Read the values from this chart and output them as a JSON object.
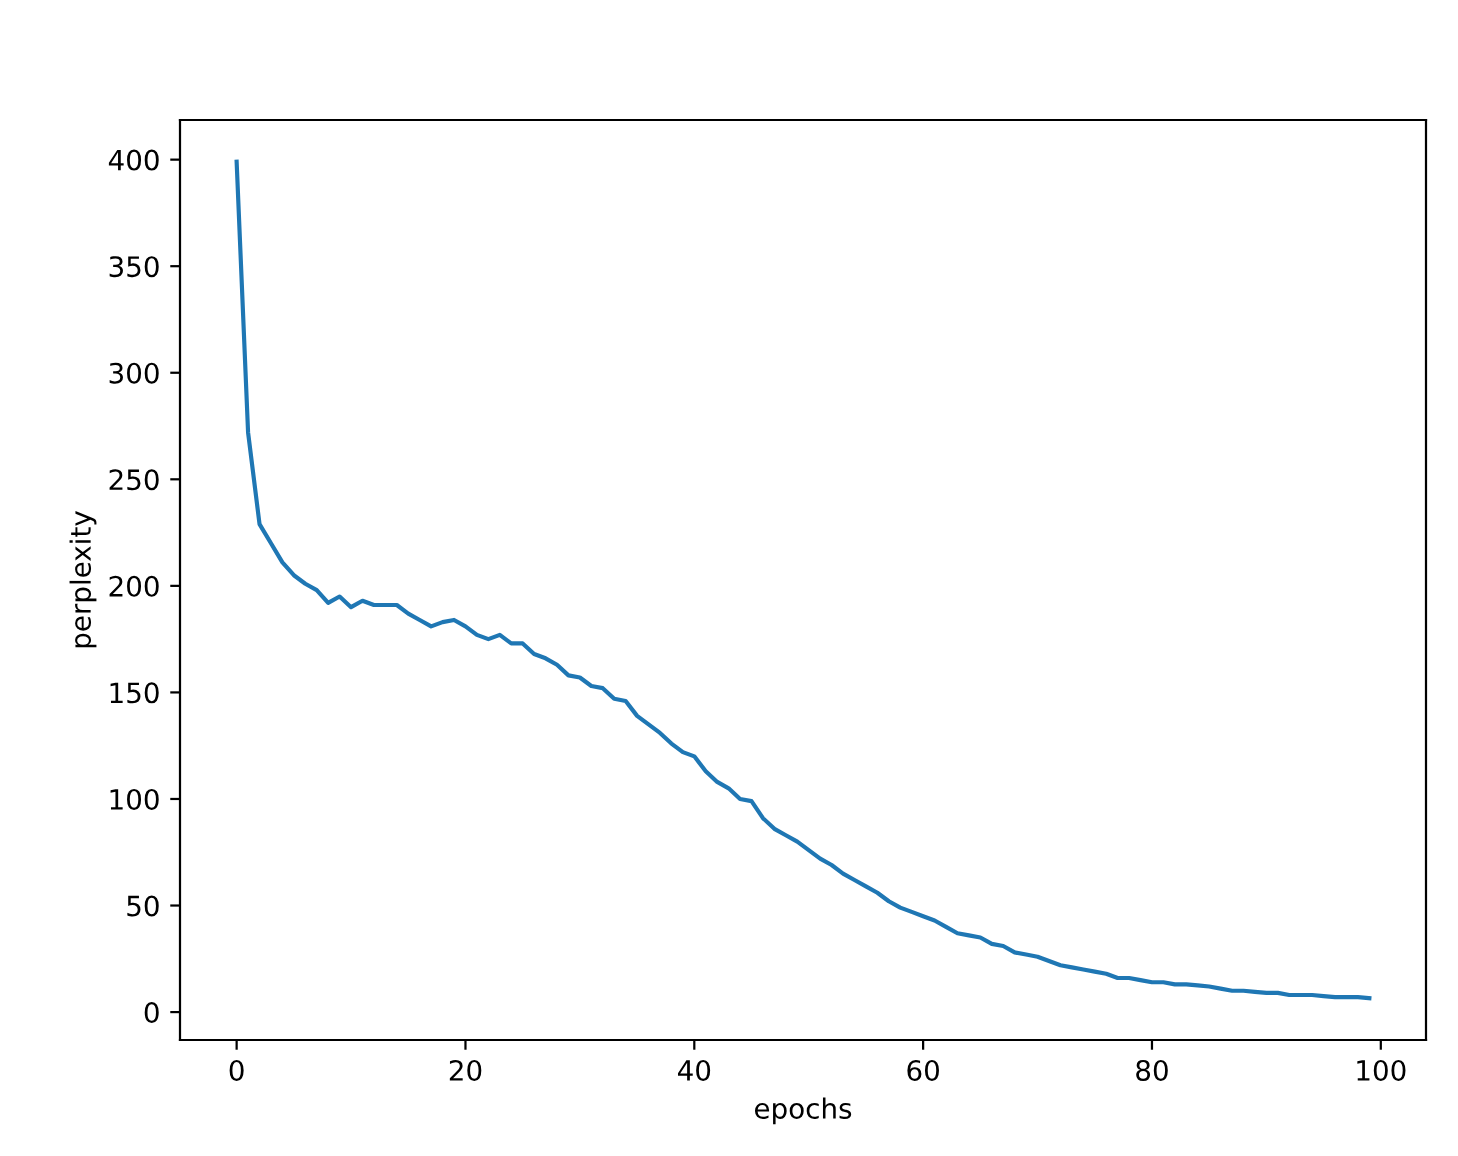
{
  "chart_data": {
    "type": "line",
    "xlabel": "epochs",
    "ylabel": "perplexity",
    "x": [
      0,
      1,
      2,
      3,
      4,
      5,
      6,
      7,
      8,
      9,
      10,
      11,
      12,
      13,
      14,
      15,
      16,
      17,
      18,
      19,
      20,
      21,
      22,
      23,
      24,
      25,
      26,
      27,
      28,
      29,
      30,
      31,
      32,
      33,
      34,
      35,
      36,
      37,
      38,
      39,
      40,
      41,
      42,
      43,
      44,
      45,
      46,
      47,
      48,
      49,
      50,
      51,
      52,
      53,
      54,
      55,
      56,
      57,
      58,
      59,
      60,
      61,
      62,
      63,
      64,
      65,
      66,
      67,
      68,
      69,
      70,
      71,
      72,
      73,
      74,
      75,
      76,
      77,
      78,
      79,
      80,
      81,
      82,
      83,
      84,
      85,
      86,
      87,
      88,
      89,
      90,
      91,
      92,
      93,
      94,
      95,
      96,
      97,
      98,
      99
    ],
    "series": [
      {
        "color": "#1f77b4",
        "values": [
          399,
          272,
          229,
          220,
          211,
          205,
          201,
          198,
          192,
          195,
          190,
          193,
          191,
          191,
          191,
          187,
          184,
          181,
          183,
          184,
          181,
          177,
          175,
          177,
          173,
          173,
          168,
          166,
          163,
          158,
          157,
          153,
          152,
          147,
          146,
          139,
          135,
          131,
          126,
          122,
          120,
          113,
          108,
          105,
          100,
          99,
          91,
          86,
          83,
          80,
          76,
          72,
          69,
          65,
          62,
          59,
          56,
          52,
          49,
          47,
          45,
          43,
          40,
          37,
          36,
          35,
          32,
          31,
          28,
          27,
          26,
          24,
          22,
          21,
          20,
          19,
          18,
          16,
          16,
          15,
          14,
          14,
          13,
          13,
          12.5,
          12,
          11,
          10,
          10,
          9.5,
          9,
          9,
          8,
          8,
          8,
          7.5,
          7,
          7,
          7,
          6.5
        ]
      }
    ],
    "xlim": [
      -4.95,
      103.95
    ],
    "ylim": [
      -13.1,
      418.6
    ],
    "xticks": [
      0,
      20,
      40,
      60,
      80,
      100
    ],
    "yticks": [
      0,
      50,
      100,
      150,
      200,
      250,
      300,
      350,
      400
    ],
    "grid": false,
    "legend": false,
    "marker": "none",
    "line_style": "solid"
  }
}
